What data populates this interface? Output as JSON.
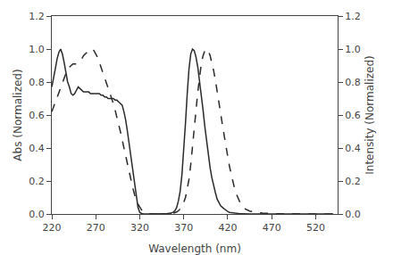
{
  "chart_data": {
    "type": "line",
    "xlabel": "Wavelength (nm)",
    "ylabel": "Abs (Normalized)",
    "y2label": "Intensity (Normalized)",
    "xlim": [
      220,
      545
    ],
    "xticks": [
      220,
      270,
      320,
      370,
      420,
      470,
      520
    ],
    "ylim": [
      0,
      1.2
    ],
    "yticks": [
      {
        "value": 0,
        "label": "0.0"
      },
      0.2,
      0.4,
      0.6,
      0.8,
      {
        "value": 1.0,
        "label": "1.0"
      },
      1.2
    ],
    "y2lim": [
      0,
      1.2
    ],
    "y2ticks": [
      {
        "value": 0,
        "label": "0.0"
      },
      0.2,
      0.4,
      0.6,
      0.8,
      {
        "value": 1.0,
        "label": "1.0"
      },
      1.2
    ],
    "grid": false,
    "series": [
      {
        "color": "#2a2a2a",
        "line_style": "solid",
        "x": [
          220,
          222,
          224,
          226,
          228,
          230,
          232,
          234,
          236,
          238,
          240,
          242,
          244,
          246,
          248,
          250,
          252,
          254,
          256,
          258,
          260,
          262,
          264,
          266,
          268,
          270,
          272,
          274,
          276,
          278,
          280,
          282,
          284,
          286,
          288,
          290,
          292,
          294,
          296,
          298,
          300,
          302,
          304,
          306,
          308,
          310,
          312,
          314,
          316,
          318,
          320,
          322,
          324,
          326,
          328,
          330,
          332,
          334,
          336,
          338,
          340
        ],
        "values": [
          0.77,
          0.82,
          0.88,
          0.94,
          0.98,
          1.0,
          0.97,
          0.92,
          0.85,
          0.8,
          0.77,
          0.73,
          0.72,
          0.73,
          0.75,
          0.77,
          0.76,
          0.75,
          0.74,
          0.74,
          0.74,
          0.74,
          0.73,
          0.73,
          0.73,
          0.73,
          0.73,
          0.73,
          0.72,
          0.72,
          0.71,
          0.71,
          0.7,
          0.7,
          0.7,
          0.7,
          0.69,
          0.69,
          0.68,
          0.67,
          0.66,
          0.62,
          0.57,
          0.5,
          0.42,
          0.34,
          0.26,
          0.17,
          0.09,
          0.04,
          0.01,
          0.003,
          0.001,
          0.0,
          0.0,
          0.0,
          0.0,
          0.0,
          0.0,
          0.0,
          0.0
        ]
      },
      {
        "color": "#2a2a2a",
        "line_style": "dashed",
        "x": [
          220,
          222,
          224,
          226,
          228,
          230,
          232,
          234,
          236,
          238,
          240,
          242,
          244,
          246,
          248,
          250,
          252,
          254,
          256,
          258,
          260,
          262,
          264,
          266,
          268,
          270,
          272,
          274,
          276,
          278,
          280,
          282,
          284,
          286,
          288,
          290,
          292,
          294,
          296,
          298,
          300,
          302,
          304,
          306,
          308,
          310,
          312,
          314,
          316,
          318,
          320,
          322,
          324,
          326,
          328,
          330,
          332,
          334,
          336,
          338,
          340,
          342,
          344,
          346,
          348,
          350,
          352,
          354,
          356
        ],
        "values": [
          0.62,
          0.65,
          0.68,
          0.71,
          0.74,
          0.77,
          0.8,
          0.83,
          0.86,
          0.88,
          0.89,
          0.9,
          0.91,
          0.91,
          0.91,
          0.92,
          0.93,
          0.94,
          0.96,
          0.97,
          0.98,
          0.99,
          1.0,
          1.0,
          0.99,
          0.97,
          0.95,
          0.92,
          0.89,
          0.86,
          0.83,
          0.8,
          0.77,
          0.74,
          0.7,
          0.67,
          0.63,
          0.59,
          0.55,
          0.5,
          0.45,
          0.4,
          0.35,
          0.3,
          0.25,
          0.2,
          0.16,
          0.12,
          0.08,
          0.06,
          0.04,
          0.025,
          0.015,
          0.008,
          0.004,
          0.002,
          0.001,
          0.0,
          0.0,
          0.0,
          0.0,
          0.0,
          0.0,
          0.0,
          0.0,
          0.0,
          0.0,
          0.0,
          0.0
        ]
      },
      {
        "color": "#2a2a2a",
        "line_style": "solid",
        "axis": "y2",
        "x": [
          340,
          345,
          350,
          355,
          358,
          360,
          362,
          364,
          366,
          368,
          370,
          372,
          374,
          376,
          378,
          380,
          382,
          384,
          386,
          388,
          390,
          392,
          394,
          396,
          398,
          400,
          402,
          404,
          406,
          408,
          410,
          412,
          414,
          416,
          418,
          420,
          422,
          424,
          426,
          428,
          430,
          432,
          434,
          436,
          438,
          440,
          445,
          450,
          455,
          460,
          465,
          470,
          475,
          480,
          490,
          500,
          510,
          520,
          530,
          540
        ],
        "values": [
          0.0,
          0.0,
          0.002,
          0.005,
          0.01,
          0.02,
          0.04,
          0.08,
          0.14,
          0.24,
          0.38,
          0.55,
          0.73,
          0.88,
          0.97,
          1.0,
          0.99,
          0.95,
          0.89,
          0.81,
          0.72,
          0.63,
          0.53,
          0.44,
          0.36,
          0.28,
          0.22,
          0.17,
          0.13,
          0.09,
          0.07,
          0.05,
          0.04,
          0.03,
          0.02,
          0.015,
          0.01,
          0.008,
          0.006,
          0.005,
          0.004,
          0.003,
          0.002,
          0.002,
          0.001,
          0.001,
          0.0,
          0.0,
          0.0,
          0.0,
          0.0,
          0.0,
          0.0,
          0.0,
          0.0,
          0.0,
          0.0,
          0.0,
          0.0,
          0.0
        ]
      },
      {
        "color": "#2a2a2a",
        "line_style": "dashed",
        "axis": "y2",
        "x": [
          340,
          345,
          350,
          355,
          358,
          360,
          362,
          364,
          366,
          368,
          370,
          372,
          374,
          376,
          378,
          380,
          382,
          384,
          386,
          388,
          390,
          392,
          394,
          396,
          398,
          400,
          402,
          404,
          406,
          408,
          410,
          412,
          414,
          416,
          418,
          420,
          422,
          424,
          426,
          428,
          430,
          432,
          434,
          436,
          438,
          440,
          445,
          450,
          455,
          460,
          465,
          470,
          475,
          480,
          485,
          490,
          495,
          500,
          505,
          510,
          515,
          520,
          525,
          530,
          535,
          540
        ],
        "values": [
          0.0,
          0.0,
          0.0,
          0.002,
          0.005,
          0.008,
          0.012,
          0.02,
          0.03,
          0.05,
          0.07,
          0.1,
          0.15,
          0.21,
          0.3,
          0.4,
          0.51,
          0.63,
          0.74,
          0.84,
          0.91,
          0.96,
          0.99,
          1.0,
          0.99,
          0.96,
          0.92,
          0.87,
          0.81,
          0.75,
          0.68,
          0.61,
          0.54,
          0.47,
          0.41,
          0.35,
          0.29,
          0.24,
          0.19,
          0.15,
          0.12,
          0.09,
          0.07,
          0.055,
          0.04,
          0.03,
          0.018,
          0.011,
          0.007,
          0.005,
          0.003,
          0.002,
          0.002,
          0.001,
          0.001,
          0.001,
          0.0,
          0.0,
          0.0,
          0.0,
          0.0,
          0.0,
          0.0,
          0.0,
          0.0,
          0.0
        ]
      }
    ]
  }
}
